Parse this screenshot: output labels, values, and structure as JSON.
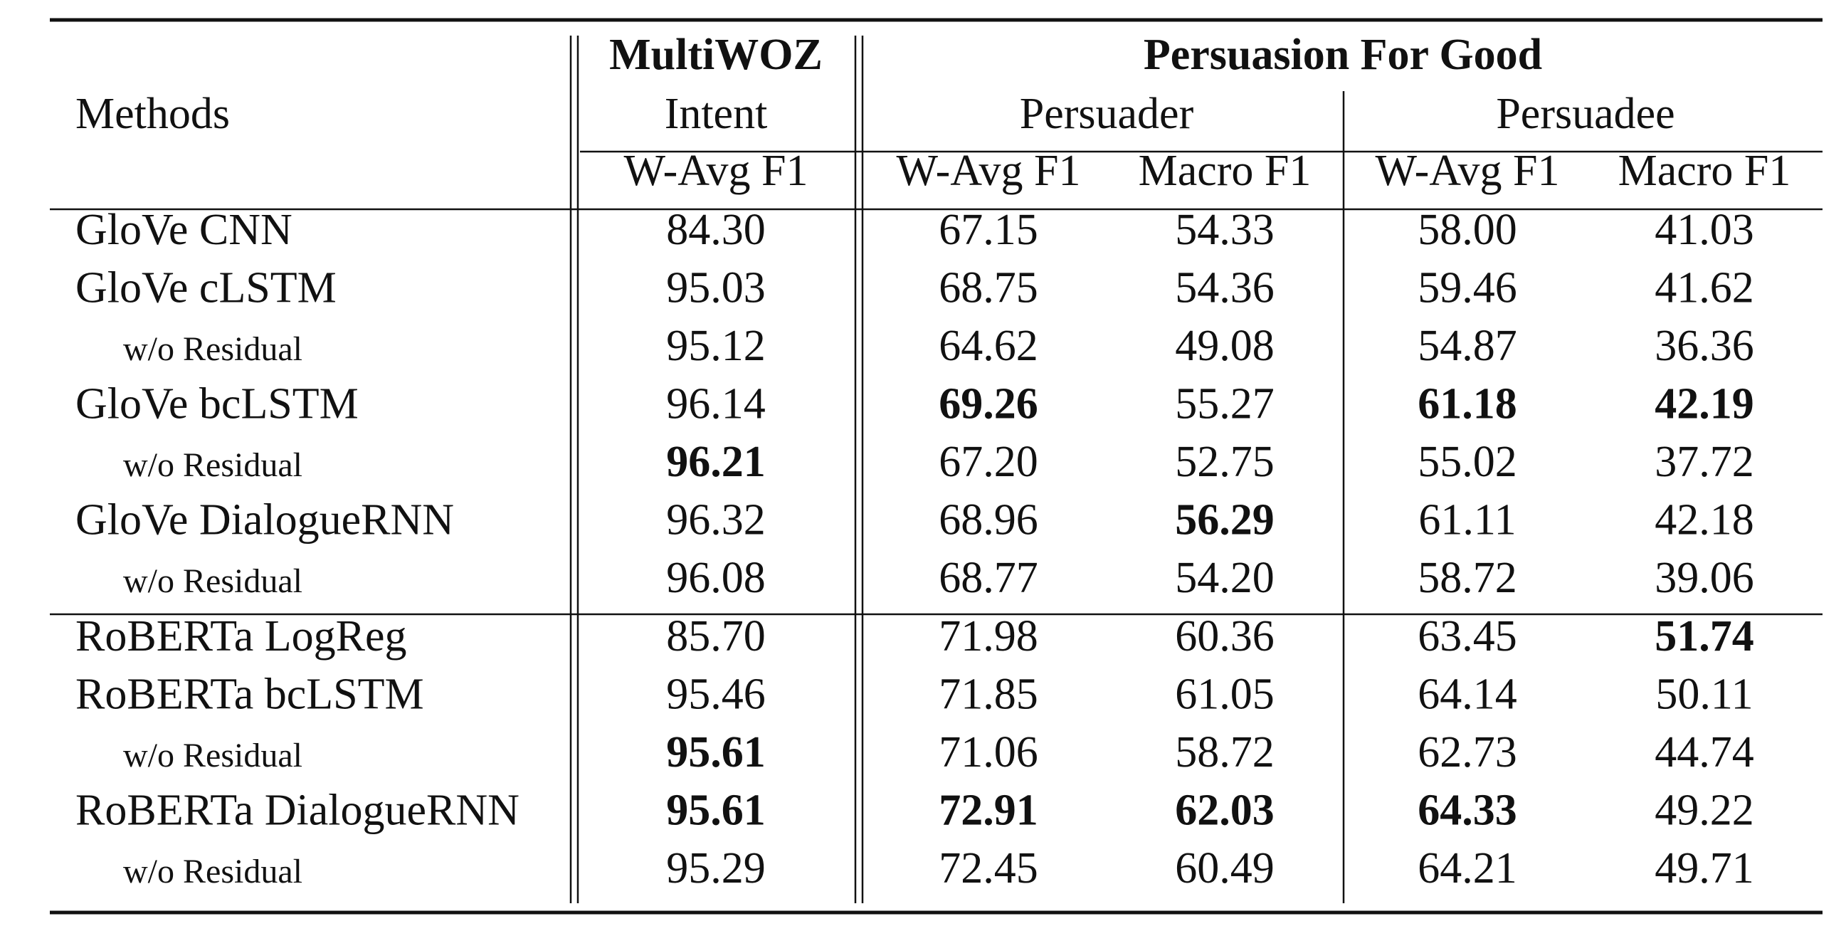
{
  "table": {
    "methods_header": "Methods",
    "groups": [
      "MultiWOZ",
      "Persuasion For Good"
    ],
    "subgroups": [
      "Intent",
      "Persuader",
      "Persuadee"
    ],
    "columns": [
      "W-Avg F1",
      "W-Avg F1",
      "Macro F1",
      "W-Avg F1",
      "Macro F1"
    ],
    "rows": [
      {
        "method": "GloVe CNN",
        "sub": false,
        "values": [
          "84.30",
          "67.15",
          "54.33",
          "58.00",
          "41.03"
        ],
        "bold": []
      },
      {
        "method": "GloVe cLSTM",
        "sub": false,
        "values": [
          "95.03",
          "68.75",
          "54.36",
          "59.46",
          "41.62"
        ],
        "bold": []
      },
      {
        "method": "w/o Residual",
        "sub": true,
        "values": [
          "95.12",
          "64.62",
          "49.08",
          "54.87",
          "36.36"
        ],
        "bold": []
      },
      {
        "method": "GloVe bcLSTM",
        "sub": false,
        "values": [
          "96.14",
          "69.26",
          "55.27",
          "61.18",
          "42.19"
        ],
        "bold": [
          1,
          3,
          4
        ]
      },
      {
        "method": "w/o Residual",
        "sub": true,
        "values": [
          "96.21",
          "67.20",
          "52.75",
          "55.02",
          "37.72"
        ],
        "bold": [
          0
        ]
      },
      {
        "method": "GloVe DialogueRNN",
        "sub": false,
        "values": [
          "96.32",
          "68.96",
          "56.29",
          "61.11",
          "42.18"
        ],
        "bold": [
          2
        ]
      },
      {
        "method": "w/o Residual",
        "sub": true,
        "values": [
          "96.08",
          "68.77",
          "54.20",
          "58.72",
          "39.06"
        ],
        "bold": []
      },
      {
        "method": "RoBERTa LogReg",
        "sub": false,
        "values": [
          "85.70",
          "71.98",
          "60.36",
          "63.45",
          "51.74"
        ],
        "bold": [
          4
        ]
      },
      {
        "method": "RoBERTa bcLSTM",
        "sub": false,
        "values": [
          "95.46",
          "71.85",
          "61.05",
          "64.14",
          "50.11"
        ],
        "bold": []
      },
      {
        "method": "w/o Residual",
        "sub": true,
        "values": [
          "95.61",
          "71.06",
          "58.72",
          "62.73",
          "44.74"
        ],
        "bold": [
          0
        ]
      },
      {
        "method": "RoBERTa DialogueRNN",
        "sub": false,
        "values": [
          "95.61",
          "72.91",
          "62.03",
          "64.33",
          "49.22"
        ],
        "bold": [
          0,
          1,
          2,
          3
        ]
      },
      {
        "method": "w/o Residual",
        "sub": true,
        "values": [
          "95.29",
          "72.45",
          "60.49",
          "64.21",
          "49.71"
        ],
        "bold": []
      }
    ]
  }
}
